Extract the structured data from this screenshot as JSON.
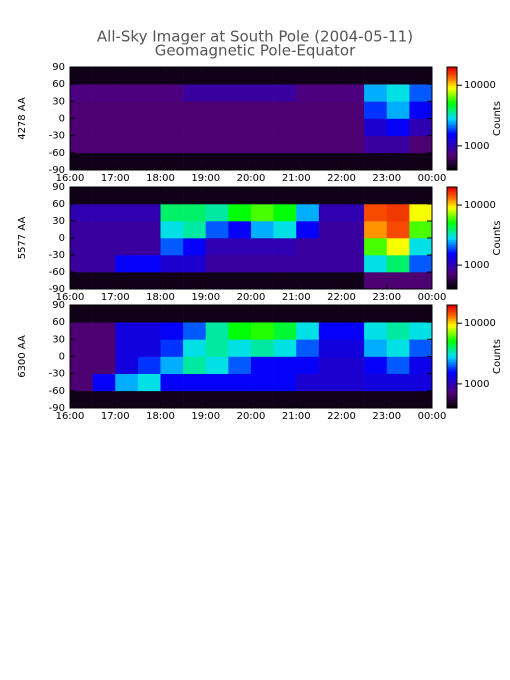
{
  "chart_data": [
    {
      "type": "heatmap",
      "title": "All-Sky Imager at South Pole (2004-05-11)",
      "subtitle": "Geomagnetic Pole-Equator",
      "ylabel": "4278 AA",
      "colorbar_label": "Counts",
      "xlim": [
        16,
        24
      ],
      "xticks": [
        {
          "value": 16,
          "label": "16:00"
        },
        {
          "value": 17,
          "label": "17:00"
        },
        {
          "value": 18,
          "label": "18:00"
        },
        {
          "value": 19,
          "label": "19:00"
        },
        {
          "value": 20,
          "label": "20:00"
        },
        {
          "value": 21,
          "label": "21:00"
        },
        {
          "value": 22,
          "label": "22:00"
        },
        {
          "value": 23,
          "label": "23:00"
        },
        {
          "value": 24,
          "label": "00:00"
        }
      ],
      "ylim": [
        -90,
        90
      ],
      "yticks": [
        90,
        60,
        30,
        0,
        -30,
        -60,
        -90
      ],
      "zlim": [
        400,
        20000
      ],
      "zticks": [
        1000,
        10000
      ],
      "zlog": true,
      "xbins": [
        16,
        16.5,
        17,
        17.5,
        18,
        18.5,
        19,
        19.5,
        20,
        20.5,
        21,
        21.5,
        22,
        22.5,
        23,
        23.5,
        24
      ],
      "ybins": [
        -90,
        -60,
        -30,
        0,
        30,
        60,
        90
      ],
      "z": [
        [
          450,
          450,
          450,
          450,
          450,
          450,
          450,
          450,
          450,
          450,
          450,
          450,
          450,
          450,
          450,
          450
        ],
        [
          700,
          700,
          700,
          700,
          700,
          700,
          700,
          700,
          700,
          700,
          700,
          700,
          700,
          900,
          900,
          700
        ],
        [
          700,
          700,
          700,
          700,
          700,
          700,
          700,
          700,
          700,
          700,
          700,
          700,
          700,
          1200,
          1500,
          1000
        ],
        [
          700,
          700,
          700,
          700,
          700,
          700,
          700,
          700,
          700,
          700,
          700,
          700,
          700,
          1800,
          2500,
          1500
        ],
        [
          750,
          750,
          750,
          750,
          750,
          900,
          900,
          900,
          900,
          900,
          750,
          750,
          750,
          2500,
          3000,
          2000
        ],
        [
          450,
          450,
          450,
          450,
          450,
          450,
          450,
          450,
          450,
          450,
          450,
          450,
          450,
          450,
          450,
          450
        ]
      ]
    },
    {
      "type": "heatmap",
      "ylabel": "5577 AA",
      "colorbar_label": "Counts",
      "xlim": [
        16,
        24
      ],
      "xticks": [
        {
          "value": 16,
          "label": "16:00"
        },
        {
          "value": 17,
          "label": "17:00"
        },
        {
          "value": 18,
          "label": "18:00"
        },
        {
          "value": 19,
          "label": "19:00"
        },
        {
          "value": 20,
          "label": "20:00"
        },
        {
          "value": 21,
          "label": "21:00"
        },
        {
          "value": 22,
          "label": "22:00"
        },
        {
          "value": 23,
          "label": "23:00"
        },
        {
          "value": 24,
          "label": "00:00"
        }
      ],
      "ylim": [
        -90,
        90
      ],
      "yticks": [
        90,
        60,
        30,
        0,
        -30,
        -60,
        -90
      ],
      "zlim": [
        400,
        20000
      ],
      "zticks": [
        1000,
        10000
      ],
      "zlog": true,
      "xbins": [
        16,
        16.5,
        17,
        17.5,
        18,
        18.5,
        19,
        19.5,
        20,
        20.5,
        21,
        21.5,
        22,
        22.5,
        23,
        23.5,
        24
      ],
      "ybins": [
        -90,
        -60,
        -30,
        0,
        30,
        60,
        90
      ],
      "z": [
        [
          450,
          450,
          450,
          450,
          450,
          450,
          450,
          450,
          450,
          450,
          450,
          450,
          450,
          700,
          700,
          700
        ],
        [
          900,
          900,
          1500,
          1500,
          1200,
          1200,
          900,
          900,
          900,
          900,
          900,
          900,
          900,
          3000,
          4000,
          2000
        ],
        [
          900,
          900,
          900,
          900,
          2000,
          1500,
          1000,
          1000,
          1000,
          1000,
          900,
          900,
          900,
          6000,
          9000,
          3000
        ],
        [
          900,
          900,
          900,
          900,
          3000,
          3500,
          2000,
          1500,
          2500,
          3000,
          1500,
          900,
          900,
          12000,
          15000,
          6000
        ],
        [
          1000,
          1000,
          1000,
          1000,
          4000,
          4000,
          3500,
          5000,
          6000,
          5000,
          2500,
          1000,
          1000,
          15000,
          16000,
          9000
        ],
        [
          450,
          450,
          450,
          450,
          450,
          450,
          450,
          450,
          450,
          450,
          450,
          450,
          450,
          450,
          450,
          450
        ]
      ]
    },
    {
      "type": "heatmap",
      "ylabel": "6300 AA",
      "colorbar_label": "Counts",
      "xlim": [
        16,
        24
      ],
      "xticks": [
        {
          "value": 16,
          "label": "16:00"
        },
        {
          "value": 17,
          "label": "17:00"
        },
        {
          "value": 18,
          "label": "18:00"
        },
        {
          "value": 19,
          "label": "19:00"
        },
        {
          "value": 20,
          "label": "20:00"
        },
        {
          "value": 21,
          "label": "21:00"
        },
        {
          "value": 22,
          "label": "22:00"
        },
        {
          "value": 23,
          "label": "23:00"
        },
        {
          "value": 24,
          "label": "00:00"
        }
      ],
      "ylim": [
        -90,
        90
      ],
      "yticks": [
        90,
        60,
        30,
        0,
        -30,
        -60,
        -90
      ],
      "zlim": [
        400,
        20000
      ],
      "zticks": [
        1000,
        10000
      ],
      "zlog": true,
      "xbins": [
        16,
        16.5,
        17,
        17.5,
        18,
        18.5,
        19,
        19.5,
        20,
        20.5,
        21,
        21.5,
        22,
        22.5,
        23,
        23.5,
        24
      ],
      "ybins": [
        -90,
        -60,
        -30,
        0,
        30,
        60,
        90
      ],
      "z": [
        [
          450,
          450,
          450,
          450,
          450,
          450,
          450,
          450,
          450,
          450,
          450,
          450,
          450,
          450,
          450,
          450
        ],
        [
          700,
          1500,
          2500,
          3000,
          1500,
          1500,
          1500,
          1500,
          1500,
          1500,
          1200,
          1200,
          1200,
          1300,
          1300,
          1300
        ],
        [
          700,
          700,
          1300,
          1800,
          2500,
          3500,
          3000,
          2000,
          1500,
          1500,
          1500,
          1200,
          1200,
          1500,
          2000,
          1400
        ],
        [
          700,
          700,
          1300,
          1300,
          1800,
          3000,
          3500,
          3000,
          3500,
          3000,
          2000,
          1300,
          1300,
          2500,
          3000,
          2000
        ],
        [
          700,
          700,
          1300,
          1300,
          1500,
          2000,
          3500,
          5000,
          5500,
          4500,
          3000,
          1500,
          1500,
          3000,
          3500,
          3000
        ],
        [
          450,
          450,
          450,
          450,
          450,
          450,
          450,
          450,
          450,
          450,
          450,
          450,
          450,
          450,
          450,
          450
        ]
      ]
    }
  ]
}
